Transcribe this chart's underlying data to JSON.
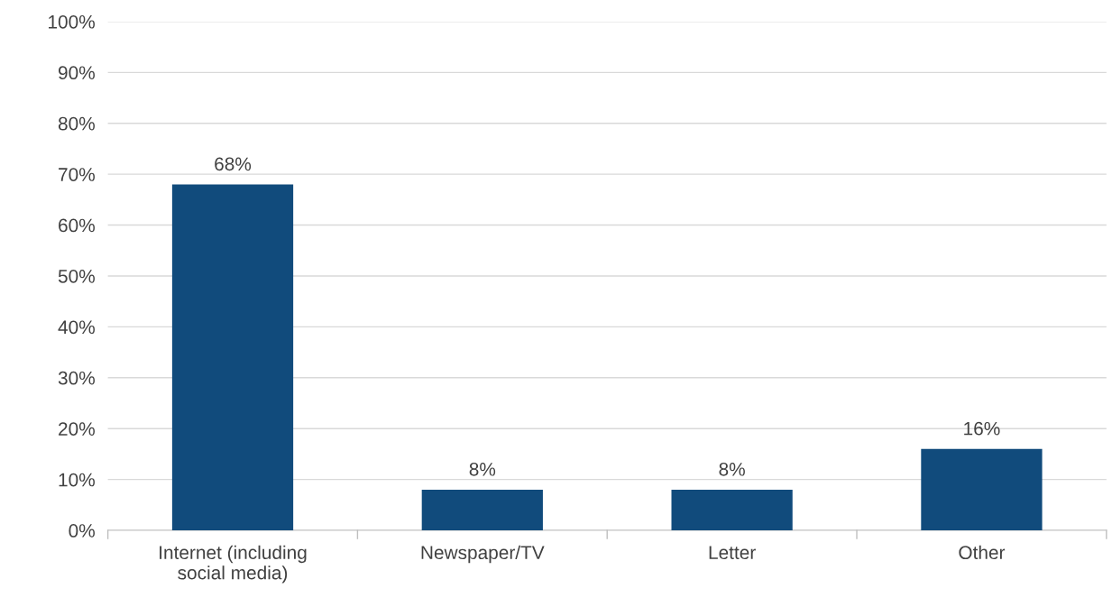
{
  "chart_data": {
    "type": "bar",
    "categories": [
      "Internet (including\nsocial media)",
      "Newspaper/TV",
      "Letter",
      "Other"
    ],
    "values": [
      68,
      8,
      8,
      16
    ],
    "value_labels": [
      "68%",
      "8%",
      "8%",
      "16%"
    ],
    "color": "#114b7c",
    "ylim": [
      0,
      100
    ],
    "yticks": [
      {
        "value": 0,
        "label": "0%"
      },
      {
        "value": 10,
        "label": "10%"
      },
      {
        "value": 20,
        "label": "20%"
      },
      {
        "value": 30,
        "label": "30%"
      },
      {
        "value": 40,
        "label": "40%"
      },
      {
        "value": 50,
        "label": "50%"
      },
      {
        "value": 60,
        "label": "60%"
      },
      {
        "value": 70,
        "label": "70%"
      },
      {
        "value": 80,
        "label": "80%"
      },
      {
        "value": 90,
        "label": "90%"
      },
      {
        "value": 100,
        "label": "100%"
      }
    ],
    "grid": "y",
    "legend": false
  }
}
